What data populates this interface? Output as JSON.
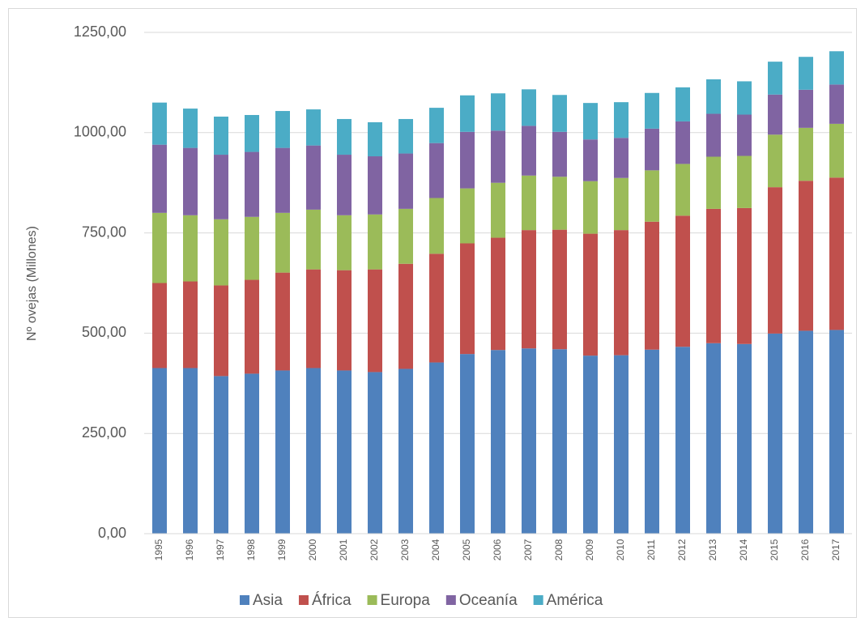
{
  "chart_data": {
    "type": "stacked_bar",
    "y_label": "Nº ovejas (Millones)",
    "categories": [
      "1995",
      "1996",
      "1997",
      "1998",
      "1999",
      "2000",
      "2001",
      "2002",
      "2003",
      "2004",
      "2005",
      "2006",
      "2007",
      "2008",
      "2009",
      "2010",
      "2011",
      "2012",
      "2013",
      "2014",
      "2015",
      "2016",
      "2017"
    ],
    "series": [
      {
        "name": "Asia",
        "color": "#4f81bd",
        "values": [
          413,
          413,
          393,
          399,
          407,
          413,
          407,
          403,
          411,
          427,
          448,
          458,
          462,
          460,
          444,
          445,
          459,
          466,
          475,
          473,
          499,
          506,
          508
        ]
      },
      {
        "name": "África",
        "color": "#c0504d",
        "values": [
          212,
          216,
          226,
          234,
          244,
          246,
          250,
          256,
          262,
          271,
          276,
          280,
          295,
          298,
          304,
          312,
          319,
          327,
          335,
          339,
          365,
          374,
          380
        ]
      },
      {
        "name": "Europa",
        "color": "#9bbb59",
        "values": [
          175,
          165,
          165,
          157,
          149,
          149,
          137,
          137,
          137,
          139,
          137,
          137,
          136,
          132,
          131,
          130,
          128,
          129,
          130,
          130,
          131,
          132,
          134
        ]
      },
      {
        "name": "Oceanía",
        "color": "#8064a2",
        "values": [
          170,
          168,
          161,
          162,
          162,
          160,
          151,
          145,
          138,
          137,
          141,
          130,
          124,
          112,
          104,
          100,
          104,
          106,
          107,
          103,
          100,
          95,
          98
        ]
      },
      {
        "name": "América",
        "color": "#4bacc6",
        "values": [
          105,
          98,
          95,
          92,
          92,
          90,
          89,
          85,
          86,
          88,
          91,
          93,
          91,
          92,
          91,
          89,
          89,
          85,
          86,
          83,
          82,
          82,
          83
        ]
      }
    ],
    "ylim": [
      0,
      1250
    ],
    "yticks": [
      {
        "value": 0,
        "label": "0,00"
      },
      {
        "value": 250,
        "label": "250,00"
      },
      {
        "value": 500,
        "label": "500,00"
      },
      {
        "value": 750,
        "label": "750,00"
      },
      {
        "value": 1000,
        "label": "1000,00"
      },
      {
        "value": 1250,
        "label": "1250,00"
      }
    ],
    "grid": true,
    "legend": "bottom"
  }
}
